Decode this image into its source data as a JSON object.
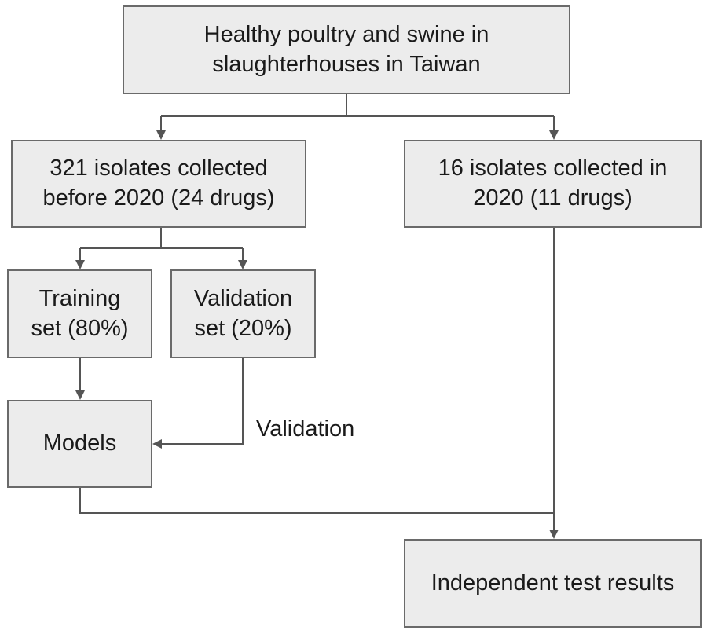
{
  "diagram": {
    "nodes": {
      "source": "Healthy poultry and swine in\nslaughterhouses in Taiwan",
      "before_2020": "321 isolates collected\nbefore 2020 (24 drugs)",
      "in_2020": "16 isolates collected in\n2020 (11 drugs)",
      "training": "Training\nset (80%)",
      "validation_set": "Validation\nset (20%)",
      "models": "Models",
      "results": "Independent test results"
    },
    "edge_labels": {
      "validation": "Validation"
    },
    "colors": {
      "box_fill": "#ececec",
      "box_border": "#6a6a6a",
      "line": "#555555"
    }
  }
}
